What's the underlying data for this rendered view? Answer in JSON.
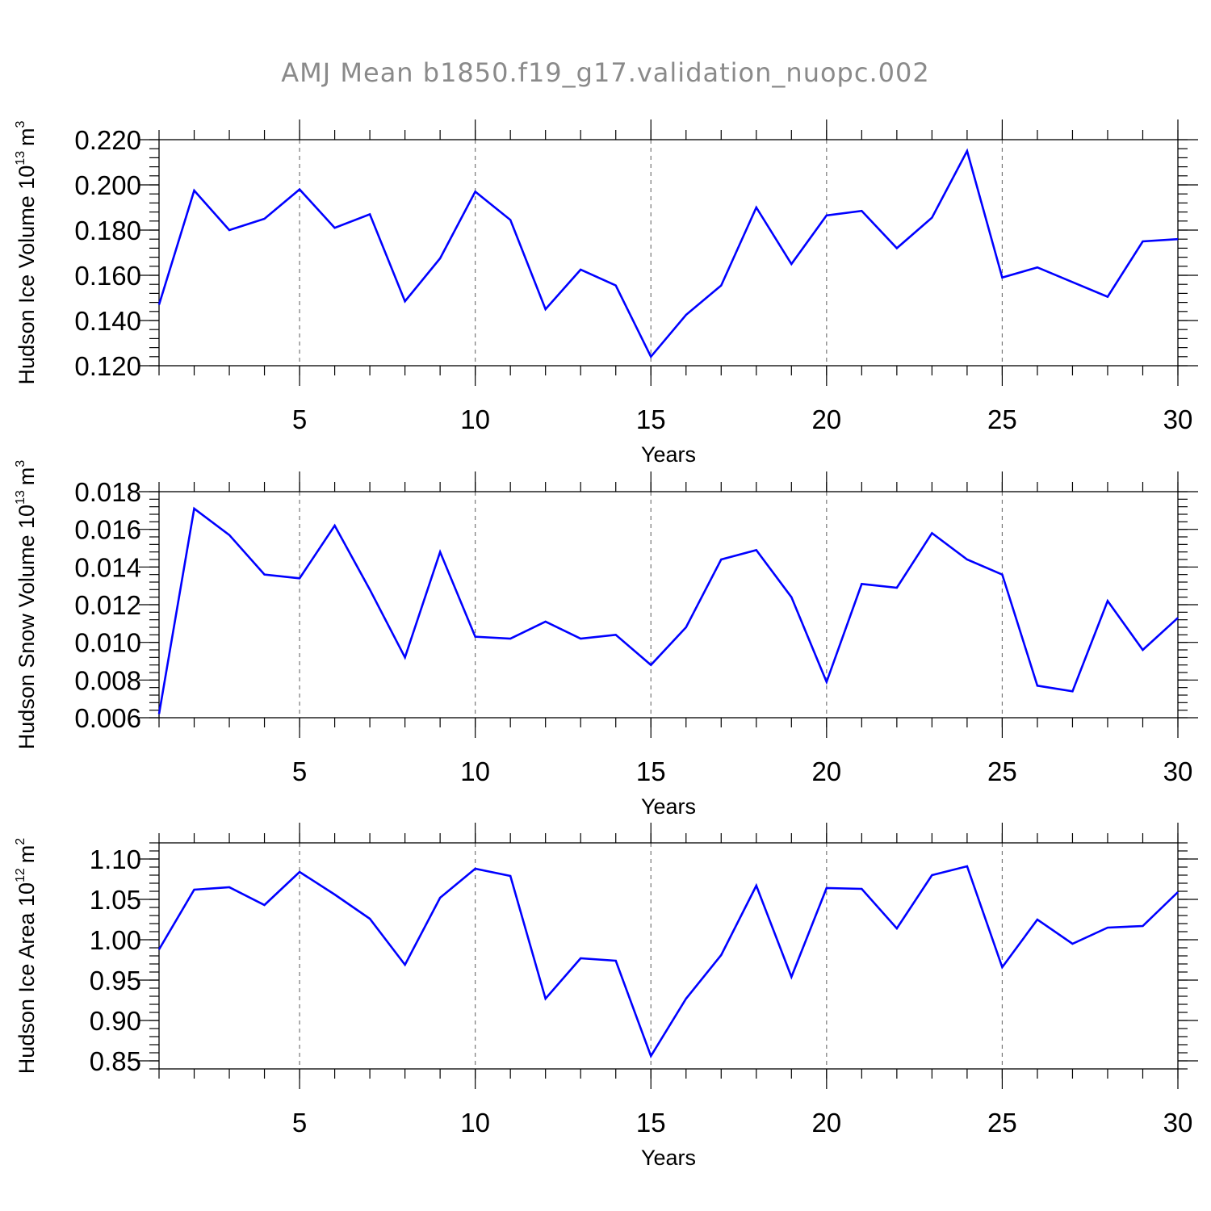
{
  "chart_data": {
    "title": "AMJ Mean b1850.f19_g17.validation_nuopc.002",
    "series_color": "#0000ff",
    "panels": [
      {
        "type": "line",
        "ylabel_main": "Hudson Ice Volume 10",
        "ylabel_exp": "13",
        "ylabel_unit": "m",
        "ylabel_unit_exp": "3",
        "xlabel": "Years",
        "xlim": [
          1,
          30
        ],
        "ylim": [
          0.12,
          0.22
        ],
        "x_ticks": [
          5,
          10,
          15,
          20,
          25,
          30
        ],
        "x_tick_labels": [
          "5",
          "10",
          "15",
          "20",
          "25",
          "30"
        ],
        "y_ticks": [
          0.12,
          0.14,
          0.16,
          0.18,
          0.2,
          0.22
        ],
        "y_tick_labels": [
          "0.120",
          "0.140",
          "0.160",
          "0.180",
          "0.200",
          "0.220"
        ],
        "x_minor_step": 1,
        "y_minor_step": 0.004,
        "x": [
          1,
          2,
          3,
          4,
          5,
          6,
          7,
          8,
          9,
          10,
          11,
          12,
          13,
          14,
          15,
          16,
          17,
          18,
          19,
          20,
          21,
          22,
          23,
          24,
          25,
          26,
          27,
          28,
          29,
          30
        ],
        "values": [
          0.147,
          0.1975,
          0.18,
          0.185,
          0.198,
          0.181,
          0.187,
          0.1485,
          0.1675,
          0.197,
          0.1845,
          0.145,
          0.1625,
          0.1555,
          0.124,
          0.1425,
          0.1555,
          0.19,
          0.165,
          0.1865,
          0.1885,
          0.172,
          0.1855,
          0.215,
          0.159,
          0.1635,
          0.157,
          0.1505,
          0.175,
          0.176
        ]
      },
      {
        "type": "line",
        "ylabel_main": "Hudson Snow Volume 10",
        "ylabel_exp": "13",
        "ylabel_unit": "m",
        "ylabel_unit_exp": "3",
        "xlabel": "Years",
        "xlim": [
          1,
          30
        ],
        "ylim": [
          0.006,
          0.018
        ],
        "x_ticks": [
          5,
          10,
          15,
          20,
          25,
          30
        ],
        "x_tick_labels": [
          "5",
          "10",
          "15",
          "20",
          "25",
          "30"
        ],
        "y_ticks": [
          0.006,
          0.008,
          0.01,
          0.012,
          0.014,
          0.016,
          0.018
        ],
        "y_tick_labels": [
          "0.006",
          "0.008",
          "0.010",
          "0.012",
          "0.014",
          "0.016",
          "0.018"
        ],
        "x_minor_step": 1,
        "y_minor_step": 0.0004,
        "x": [
          1,
          2,
          3,
          4,
          5,
          6,
          7,
          8,
          9,
          10,
          11,
          12,
          13,
          14,
          15,
          16,
          17,
          18,
          19,
          20,
          21,
          22,
          23,
          24,
          25,
          26,
          27,
          28,
          29,
          30
        ],
        "values": [
          0.0062,
          0.0171,
          0.0157,
          0.0136,
          0.0134,
          0.0162,
          0.0128,
          0.0092,
          0.0148,
          0.0103,
          0.0102,
          0.0111,
          0.0102,
          0.0104,
          0.0088,
          0.0108,
          0.0144,
          0.0149,
          0.0124,
          0.0079,
          0.0131,
          0.0129,
          0.0158,
          0.0144,
          0.0136,
          0.0077,
          0.0074,
          0.0122,
          0.0096,
          0.0113
        ]
      },
      {
        "type": "line",
        "ylabel_main": "Hudson Ice Area 10",
        "ylabel_exp": "12",
        "ylabel_unit": "m",
        "ylabel_unit_exp": "2",
        "xlabel": "Years",
        "xlim": [
          1,
          30
        ],
        "ylim": [
          0.84,
          1.12
        ],
        "x_ticks": [
          5,
          10,
          15,
          20,
          25,
          30
        ],
        "x_tick_labels": [
          "5",
          "10",
          "15",
          "20",
          "25",
          "30"
        ],
        "y_ticks": [
          0.85,
          0.9,
          0.95,
          1.0,
          1.05,
          1.1
        ],
        "y_tick_labels": [
          "0.85",
          "0.90",
          "0.95",
          "1.00",
          "1.05",
          "1.10"
        ],
        "x_minor_step": 1,
        "y_minor_step": 0.01,
        "x": [
          1,
          2,
          3,
          4,
          5,
          6,
          7,
          8,
          9,
          10,
          11,
          12,
          13,
          14,
          15,
          16,
          17,
          18,
          19,
          20,
          21,
          22,
          23,
          24,
          25,
          26,
          27,
          28,
          29,
          30
        ],
        "values": [
          0.988,
          1.062,
          1.065,
          1.043,
          1.084,
          1.056,
          1.026,
          0.969,
          1.052,
          1.088,
          1.079,
          0.927,
          0.977,
          0.974,
          0.856,
          0.927,
          0.981,
          1.067,
          0.954,
          1.064,
          1.063,
          1.014,
          1.08,
          1.091,
          0.966,
          1.025,
          0.995,
          1.015,
          1.017,
          1.059
        ]
      }
    ]
  }
}
